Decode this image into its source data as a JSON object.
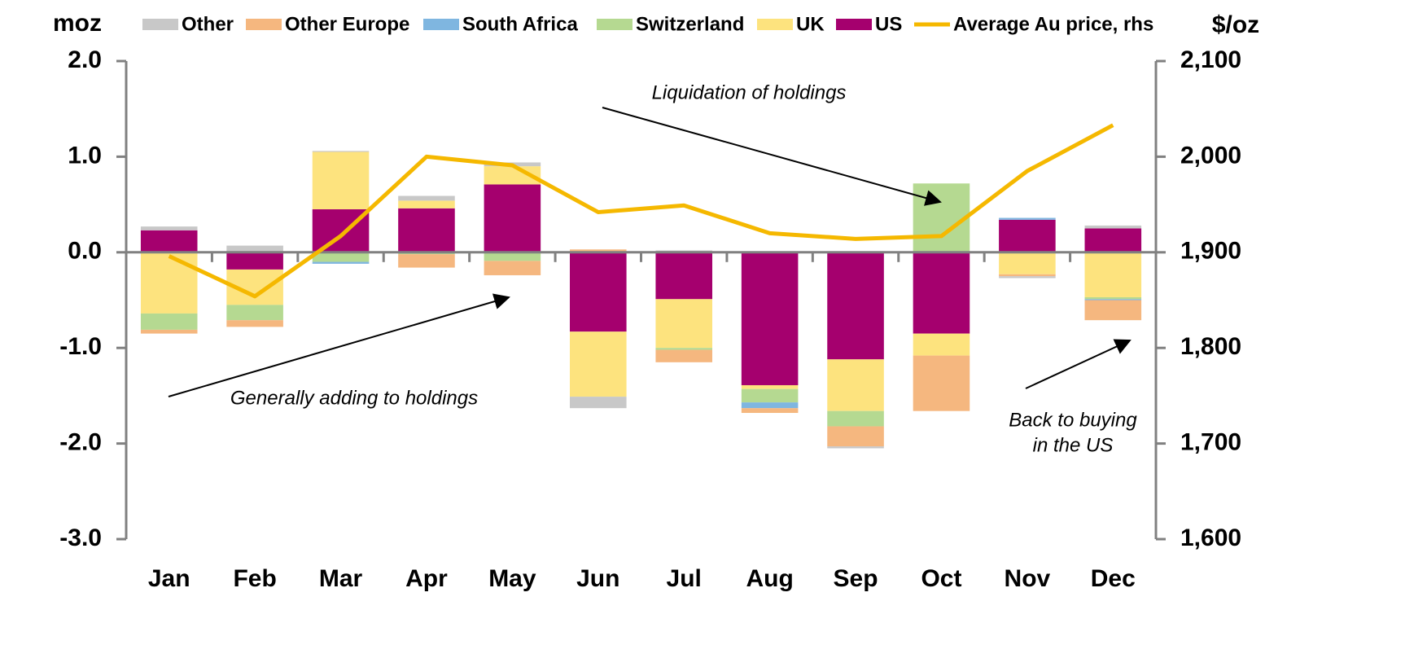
{
  "chart_data": {
    "type": "bar",
    "y_label": "moz",
    "y2_label": "$/oz",
    "categories": [
      "Jan",
      "Feb",
      "Mar",
      "Apr",
      "May",
      "Jun",
      "Jul",
      "Aug",
      "Sep",
      "Oct",
      "Nov",
      "Dec"
    ],
    "stacked": true,
    "series": [
      {
        "name": "Other",
        "color": "#c8c8c8",
        "values": [
          0.04,
          0.07,
          0.01,
          0.05,
          0.04,
          -0.12,
          0.02,
          0,
          -0.02,
          0,
          -0.02,
          0.03
        ]
      },
      {
        "name": "Other Europe",
        "color": "#f5b77f",
        "values": [
          -0.04,
          -0.07,
          0,
          -0.14,
          -0.15,
          0.03,
          -0.13,
          -0.05,
          -0.21,
          -0.58,
          -0.02,
          -0.21
        ]
      },
      {
        "name": "South Africa",
        "color": "#7fb6e0",
        "values": [
          0,
          0,
          -0.02,
          0,
          0,
          0,
          0,
          -0.06,
          0,
          0,
          0.02,
          -0.01
        ]
      },
      {
        "name": "Switzerland",
        "color": "#b5d991",
        "values": [
          -0.17,
          -0.16,
          -0.1,
          -0.02,
          -0.09,
          0,
          -0.02,
          -0.14,
          -0.16,
          0.72,
          0,
          -0.02
        ]
      },
      {
        "name": "UK",
        "color": "#fde37e",
        "values": [
          -0.64,
          -0.37,
          0.6,
          0.08,
          0.19,
          -0.68,
          -0.51,
          -0.04,
          -0.54,
          -0.23,
          -0.23,
          -0.47
        ]
      },
      {
        "name": "US",
        "color": "#a5006e",
        "values": [
          0.23,
          -0.18,
          0.45,
          0.46,
          0.71,
          -0.83,
          -0.49,
          -1.39,
          -1.12,
          -0.85,
          0.34,
          0.25
        ]
      },
      {
        "name": "Average Au price, rhs",
        "type": "line",
        "axis": "y2",
        "color": "#f5b800",
        "values": [
          1896,
          1854,
          1917,
          2000,
          1991,
          1942,
          1949,
          1920,
          1914,
          1917,
          1985,
          2033
        ]
      }
    ],
    "ylim": [
      -3,
      2
    ],
    "yticks": [
      {
        "value": -3,
        "label": "-3.0"
      },
      {
        "value": -2,
        "label": "-2.0"
      },
      {
        "value": -1,
        "label": "-1.0"
      },
      {
        "value": 0,
        "label": "0.0"
      },
      {
        "value": 1,
        "label": "1.0"
      },
      {
        "value": 2,
        "label": "2.0"
      }
    ],
    "y2lim": [
      1600,
      2100
    ],
    "y2ticks": [
      {
        "value": 1600,
        "label": "1,600"
      },
      {
        "value": 1700,
        "label": "1,700"
      },
      {
        "value": 1800,
        "label": "1,800"
      },
      {
        "value": 1900,
        "label": "1,900"
      },
      {
        "value": 2000,
        "label": "2,000"
      },
      {
        "value": 2100,
        "label": "2,100"
      }
    ],
    "legend": "top",
    "annotations": [
      "Liquidation of holdings",
      "Generally adding to holdings",
      "Back to buying",
      "in the US"
    ]
  }
}
